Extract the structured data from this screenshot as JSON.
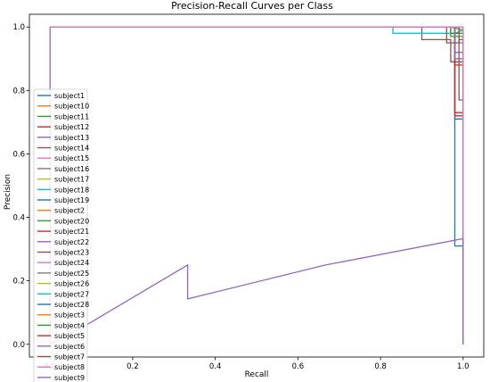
{
  "chart_data": {
    "type": "line",
    "title": "Precision-Recall Curves per Class",
    "xlabel": "Recall",
    "ylabel": "Precision",
    "xlim": [
      -0.05,
      1.05
    ],
    "ylim": [
      -0.04,
      1.04
    ],
    "xticks": [
      "0.0",
      "0.2",
      "0.4",
      "0.6",
      "0.8",
      "1.0"
    ],
    "yticks": [
      "0.0",
      "0.2",
      "0.4",
      "0.6",
      "0.8",
      "1.0"
    ],
    "grid": false,
    "legend_position": "center-left",
    "series": [
      {
        "name": "subject1",
        "color": "#1f77b4",
        "x": [
          0,
          0,
          0.98,
          0.98,
          1.0,
          1.0
        ],
        "y": [
          1.0,
          1.0,
          1.0,
          0.31,
          0.31,
          0.0
        ]
      },
      {
        "name": "subject10",
        "color": "#ff7f0e",
        "x": [
          0,
          0,
          0.99,
          1.0,
          1.0
        ],
        "y": [
          1.0,
          1.0,
          1.0,
          1.0,
          0.0
        ]
      },
      {
        "name": "subject11",
        "color": "#2ca02c",
        "x": [
          0,
          0,
          0.97,
          1.0,
          1.0
        ],
        "y": [
          1.0,
          1.0,
          1.0,
          0.99,
          0.0
        ]
      },
      {
        "name": "subject12",
        "color": "#d62728",
        "x": [
          0,
          0,
          0.98,
          0.98,
          1.0,
          1.0
        ],
        "y": [
          1.0,
          1.0,
          1.0,
          0.88,
          0.88,
          0.0
        ]
      },
      {
        "name": "subject13",
        "color": "#9467bd",
        "x": [
          0,
          0,
          0.98,
          0.98,
          1.0,
          1.0
        ],
        "y": [
          1.0,
          1.0,
          1.0,
          0.92,
          0.92,
          0.0
        ]
      },
      {
        "name": "subject14",
        "color": "#8c564b",
        "x": [
          0,
          0,
          0.9,
          0.9,
          0.97,
          0.97,
          1.0,
          1.0
        ],
        "y": [
          1.0,
          1.0,
          1.0,
          0.96,
          0.96,
          0.89,
          0.89,
          0.0
        ]
      },
      {
        "name": "subject15",
        "color": "#e377c2",
        "x": [
          0,
          0,
          1.0,
          1.0
        ],
        "y": [
          1.0,
          1.0,
          1.0,
          0.0
        ]
      },
      {
        "name": "subject16",
        "color": "#7f7f7f",
        "x": [
          0,
          0,
          1.0,
          1.0
        ],
        "y": [
          1.0,
          1.0,
          1.0,
          0.0
        ]
      },
      {
        "name": "subject17",
        "color": "#bcbd22",
        "x": [
          0,
          0,
          1.0,
          1.0
        ],
        "y": [
          1.0,
          1.0,
          1.0,
          0.0
        ]
      },
      {
        "name": "subject18",
        "color": "#17becf",
        "x": [
          0,
          0,
          0.83,
          0.83,
          0.98,
          1.0,
          1.0
        ],
        "y": [
          1.0,
          1.0,
          1.0,
          0.98,
          0.98,
          0.99,
          0.0
        ]
      },
      {
        "name": "subject19",
        "color": "#1f77b4",
        "x": [
          0,
          0,
          0.98,
          0.98,
          1.0,
          1.0
        ],
        "y": [
          1.0,
          1.0,
          1.0,
          0.71,
          0.71,
          0.0
        ]
      },
      {
        "name": "subject2",
        "color": "#ff7f0e",
        "x": [
          0,
          0,
          1.0,
          1.0
        ],
        "y": [
          1.0,
          1.0,
          1.0,
          0.0
        ]
      },
      {
        "name": "subject20",
        "color": "#2ca02c",
        "x": [
          0,
          0,
          0.97,
          0.97,
          1.0,
          1.0
        ],
        "y": [
          1.0,
          1.0,
          1.0,
          0.98,
          0.98,
          0.0
        ]
      },
      {
        "name": "subject21",
        "color": "#d62728",
        "x": [
          0,
          0,
          0.98,
          0.98,
          1.0,
          1.0
        ],
        "y": [
          1.0,
          1.0,
          1.0,
          0.73,
          0.73,
          0.0
        ]
      },
      {
        "name": "subject22",
        "color": "#9467bd",
        "x": [
          0,
          0,
          0.99,
          0.99,
          1.0,
          1.0
        ],
        "y": [
          1.0,
          1.0,
          1.0,
          0.95,
          0.95,
          0.0
        ]
      },
      {
        "name": "subject23",
        "color": "#8c564b",
        "x": [
          0,
          0,
          0.99,
          0.99,
          1.0,
          1.0
        ],
        "y": [
          1.0,
          1.0,
          1.0,
          0.77,
          0.77,
          0.0
        ]
      },
      {
        "name": "subject24",
        "color": "#e377c2",
        "x": [
          0,
          0,
          1.0,
          1.0
        ],
        "y": [
          1.0,
          1.0,
          1.0,
          0.0
        ]
      },
      {
        "name": "subject25",
        "color": "#7f7f7f",
        "x": [
          0,
          0,
          1.0,
          1.0
        ],
        "y": [
          1.0,
          1.0,
          1.0,
          0.0
        ]
      },
      {
        "name": "subject26",
        "color": "#bcbd22",
        "x": [
          0,
          0,
          1.0,
          1.0
        ],
        "y": [
          1.0,
          1.0,
          1.0,
          0.0
        ]
      },
      {
        "name": "subject27",
        "color": "#17becf",
        "x": [
          0,
          0,
          1.0,
          1.0
        ],
        "y": [
          1.0,
          1.0,
          1.0,
          0.0
        ]
      },
      {
        "name": "subject28",
        "color": "#1f77b4",
        "x": [
          0,
          0,
          1.0,
          1.0
        ],
        "y": [
          1.0,
          1.0,
          1.0,
          0.0
        ]
      },
      {
        "name": "subject3",
        "color": "#ff7f0e",
        "x": [
          0,
          0,
          1.0,
          1.0
        ],
        "y": [
          1.0,
          1.0,
          1.0,
          0.0
        ]
      },
      {
        "name": "subject4",
        "color": "#2ca02c",
        "x": [
          0,
          0,
          0.97,
          0.97,
          1.0,
          1.0
        ],
        "y": [
          1.0,
          1.0,
          1.0,
          0.97,
          0.97,
          0.0
        ]
      },
      {
        "name": "subject5",
        "color": "#d62728",
        "x": [
          0,
          0,
          0.98,
          0.98,
          1.0,
          1.0
        ],
        "y": [
          1.0,
          1.0,
          1.0,
          0.72,
          0.72,
          0.0
        ]
      },
      {
        "name": "subject6",
        "color": "#9467bd",
        "x": [
          0,
          0,
          0.98,
          0.98,
          1.0,
          1.0
        ],
        "y": [
          1.0,
          1.0,
          1.0,
          0.9,
          0.9,
          0.0
        ]
      },
      {
        "name": "subject7",
        "color": "#8c564b",
        "x": [
          0,
          0,
          0.96,
          0.96,
          0.99,
          0.99,
          1.0,
          1.0
        ],
        "y": [
          1.0,
          1.0,
          1.0,
          0.95,
          0.95,
          0.96,
          0.96,
          0.0
        ]
      },
      {
        "name": "subject8",
        "color": "#e377c2",
        "x": [
          0,
          0,
          1.0,
          1.0
        ],
        "y": [
          1.0,
          1.0,
          1.0,
          0.0
        ]
      },
      {
        "name": "subject9",
        "color": "#9467bd",
        "x": [
          0,
          0,
          0.1,
          0.333,
          0.333,
          0.667,
          1.0,
          1.0
        ],
        "y": [
          1.0,
          0.0,
          0.07,
          0.25,
          0.143,
          0.25,
          0.333,
          0.0
        ]
      }
    ]
  }
}
